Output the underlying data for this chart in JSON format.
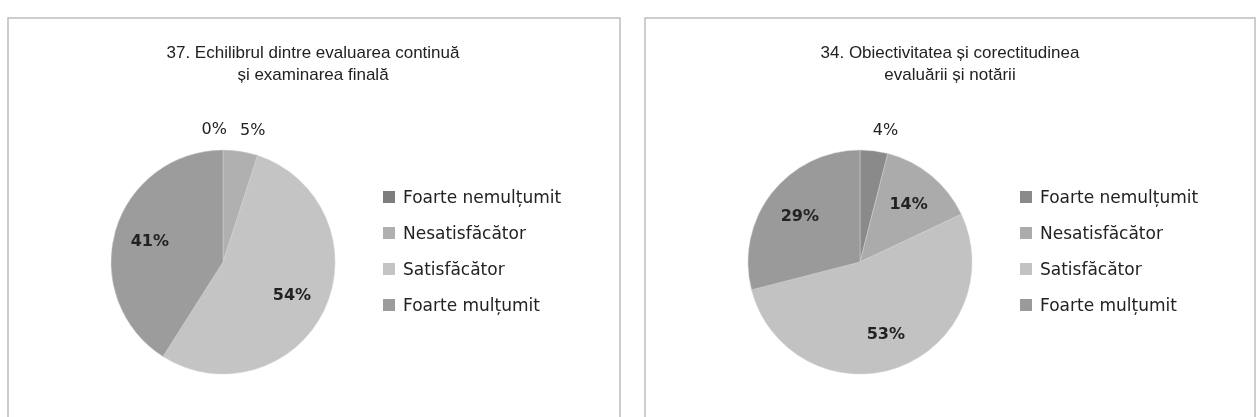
{
  "chart_data": [
    {
      "type": "pie",
      "title": "37. Echilibrul dintre evaluarea continuă și examinarea finală",
      "categories": [
        "Foarte nemulțumit",
        "Nesatisfăcător",
        "Satisfăcător",
        "Foarte mulțumit"
      ],
      "values": [
        0,
        5,
        54,
        41
      ],
      "colors": [
        "#7d7d7d",
        "#b0b0b0",
        "#c4c4c4",
        "#9c9c9c"
      ],
      "value_labels": [
        "0%",
        "5%",
        "54%",
        "41%"
      ],
      "legend": "right"
    },
    {
      "type": "pie",
      "title": "34. Obiectivitatea și corectitudinea evaluării și notării",
      "categories": [
        "Foarte nemulțumit",
        "Nesatisfăcător",
        "Satisfăcător",
        "Foarte mulțumit"
      ],
      "values": [
        4,
        14,
        53,
        29
      ],
      "colors": [
        "#8a8a8a",
        "#ababab",
        "#c2c2c2",
        "#9a9a9a"
      ],
      "value_labels": [
        "4%",
        "14%",
        "53%",
        "29%"
      ],
      "legend": "right"
    }
  ]
}
